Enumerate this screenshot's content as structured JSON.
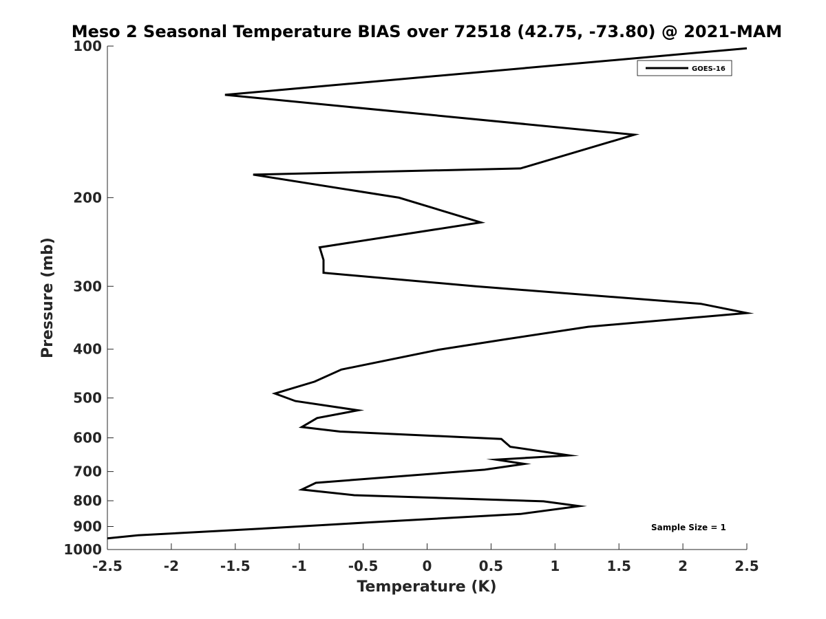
{
  "chart_data": {
    "type": "line",
    "title": "Meso 2 Seasonal Temperature BIAS over 72518 (42.75, -73.80) @ 2021-MAM",
    "xlabel": "Temperature (K)",
    "ylabel": "Pressure (mb)",
    "xlim": [
      -2.5,
      2.5
    ],
    "ylim": [
      100,
      1000
    ],
    "y_scale": "log",
    "y_reversed": true,
    "x_ticks": [
      -2.5,
      -2,
      -1.5,
      -1,
      -0.5,
      0,
      0.5,
      1,
      1.5,
      2,
      2.5
    ],
    "x_tick_labels": [
      "-2.5",
      "-2",
      "-1.5",
      "-1",
      "-0.5",
      "0",
      "0.5",
      "1",
      "1.5",
      "2",
      "2.5"
    ],
    "y_ticks": [
      100,
      200,
      300,
      400,
      500,
      600,
      700,
      800,
      900,
      1000
    ],
    "y_tick_labels": [
      "100",
      "200",
      "300",
      "400",
      "500",
      "600",
      "700",
      "800",
      "900",
      "1000"
    ],
    "legend_position": "top-right",
    "annotation": "Sample Size = 1",
    "series": [
      {
        "name": "GOES-16",
        "color": "#000000",
        "points": [
          [
            2.5,
            101
          ],
          [
            -1.58,
            125
          ],
          [
            1.62,
            150
          ],
          [
            0.73,
            175
          ],
          [
            -1.36,
            180
          ],
          [
            -0.22,
            200
          ],
          [
            0.42,
            224
          ],
          [
            -0.84,
            251
          ],
          [
            -0.81,
            266
          ],
          [
            -0.81,
            282
          ],
          [
            0.38,
            300
          ],
          [
            2.14,
            325
          ],
          [
            2.5,
            339
          ],
          [
            1.26,
            361
          ],
          [
            0.62,
            382
          ],
          [
            0.09,
            401
          ],
          [
            -0.67,
            439
          ],
          [
            -0.88,
            464
          ],
          [
            -1.19,
            490
          ],
          [
            -1.03,
            507
          ],
          [
            -0.54,
            529
          ],
          [
            -0.86,
            548
          ],
          [
            -0.98,
            571
          ],
          [
            -0.68,
            583
          ],
          [
            0.58,
            603
          ],
          [
            0.65,
            625
          ],
          [
            1.11,
            650
          ],
          [
            0.54,
            663
          ],
          [
            0.76,
            676
          ],
          [
            0.45,
            694
          ],
          [
            -0.87,
            737
          ],
          [
            -0.98,
            760
          ],
          [
            -0.57,
            780
          ],
          [
            0.91,
            802
          ],
          [
            1.19,
            820
          ],
          [
            0.73,
            850
          ],
          [
            -0.44,
            883
          ],
          [
            -1.17,
            905
          ],
          [
            -2.26,
            937
          ],
          [
            -2.5,
            950
          ]
        ]
      }
    ]
  }
}
